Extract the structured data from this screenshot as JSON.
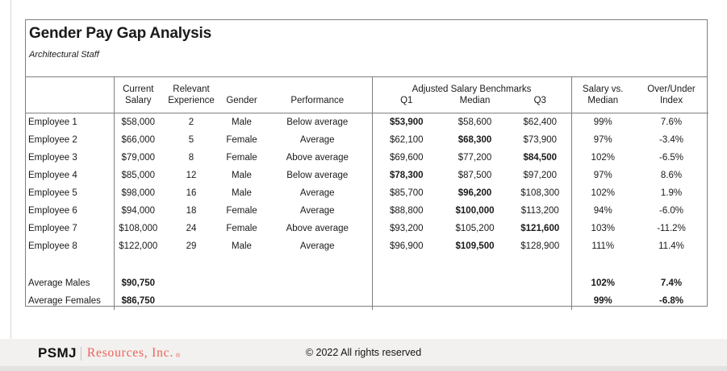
{
  "page": {
    "title": "Gender Pay Gap Analysis",
    "subtitle": "Architectural Staff"
  },
  "table": {
    "header": {
      "current_line1": "Current",
      "current_line2": "Salary",
      "relevant_line1": "Relevant",
      "relevant_line2": "Experience",
      "gender": "Gender",
      "performance": "Performance",
      "benchmarks_group": "Adjusted Salary Benchmarks",
      "q1": "Q1",
      "median": "Median",
      "q3": "Q3",
      "salary_vs_line1": "Salary vs.",
      "salary_vs_line2": "Median",
      "over_under_line1": "Over/Under",
      "over_under_line2": "Index"
    },
    "rows": [
      {
        "name": "Employee 1",
        "current_salary": "$58,000",
        "experience": "2",
        "gender": "Male",
        "performance": "Below average",
        "q1": "$53,900",
        "median": "$58,600",
        "q3": "$62,400",
        "bold": "q1",
        "salary_vs_median": "99%",
        "over_under_index": "7.6%"
      },
      {
        "name": "Employee 2",
        "current_salary": "$66,000",
        "experience": "5",
        "gender": "Female",
        "performance": "Average",
        "q1": "$62,100",
        "median": "$68,300",
        "q3": "$73,900",
        "bold": "median",
        "salary_vs_median": "97%",
        "over_under_index": "-3.4%"
      },
      {
        "name": "Employee 3",
        "current_salary": "$79,000",
        "experience": "8",
        "gender": "Female",
        "performance": "Above average",
        "q1": "$69,600",
        "median": "$77,200",
        "q3": "$84,500",
        "bold": "q3",
        "salary_vs_median": "102%",
        "over_under_index": "-6.5%"
      },
      {
        "name": "Employee 4",
        "current_salary": "$85,000",
        "experience": "12",
        "gender": "Male",
        "performance": "Below average",
        "q1": "$78,300",
        "median": "$87,500",
        "q3": "$97,200",
        "bold": "q1",
        "salary_vs_median": "97%",
        "over_under_index": "8.6%"
      },
      {
        "name": "Employee 5",
        "current_salary": "$98,000",
        "experience": "16",
        "gender": "Male",
        "performance": "Average",
        "q1": "$85,700",
        "median": "$96,200",
        "q3": "$108,300",
        "bold": "median",
        "salary_vs_median": "102%",
        "over_under_index": "1.9%"
      },
      {
        "name": "Employee 6",
        "current_salary": "$94,000",
        "experience": "18",
        "gender": "Female",
        "performance": "Average",
        "q1": "$88,800",
        "median": "$100,000",
        "q3": "$113,200",
        "bold": "median",
        "salary_vs_median": "94%",
        "over_under_index": "-6.0%"
      },
      {
        "name": "Employee 7",
        "current_salary": "$108,000",
        "experience": "24",
        "gender": "Female",
        "performance": "Above average",
        "q1": "$93,200",
        "median": "$105,200",
        "q3": "$121,600",
        "bold": "q3",
        "salary_vs_median": "103%",
        "over_under_index": "-11.2%"
      },
      {
        "name": "Employee 8",
        "current_salary": "$122,000",
        "experience": "29",
        "gender": "Male",
        "performance": "Average",
        "q1": "$96,900",
        "median": "$109,500",
        "q3": "$128,900",
        "bold": "median",
        "salary_vs_median": "111%",
        "over_under_index": "11.4%"
      }
    ],
    "summary_rows": [
      {
        "name": "Average Males",
        "current_salary": "$90,750",
        "experience": "",
        "gender": "",
        "performance": "",
        "q1": "",
        "median": "",
        "q3": "",
        "salary_vs_median": "102%",
        "over_under_index": "7.4%"
      },
      {
        "name": "Average Females",
        "current_salary": "$86,750",
        "experience": "",
        "gender": "",
        "performance": "",
        "q1": "",
        "median": "",
        "q3": "",
        "salary_vs_median": "99%",
        "over_under_index": "-6.8%"
      }
    ]
  },
  "footer": {
    "logo_psmj": "PSMJ",
    "logo_resources": "Resources, Inc.",
    "logo_reg": "®",
    "copyright": "© 2022 All rights reserved"
  },
  "colors": {
    "logo_red": "#ec5f57",
    "table_border": "#7f7f7f",
    "footer_bg": "#f2f1ef",
    "footer_strip": "#e2e2e0"
  }
}
